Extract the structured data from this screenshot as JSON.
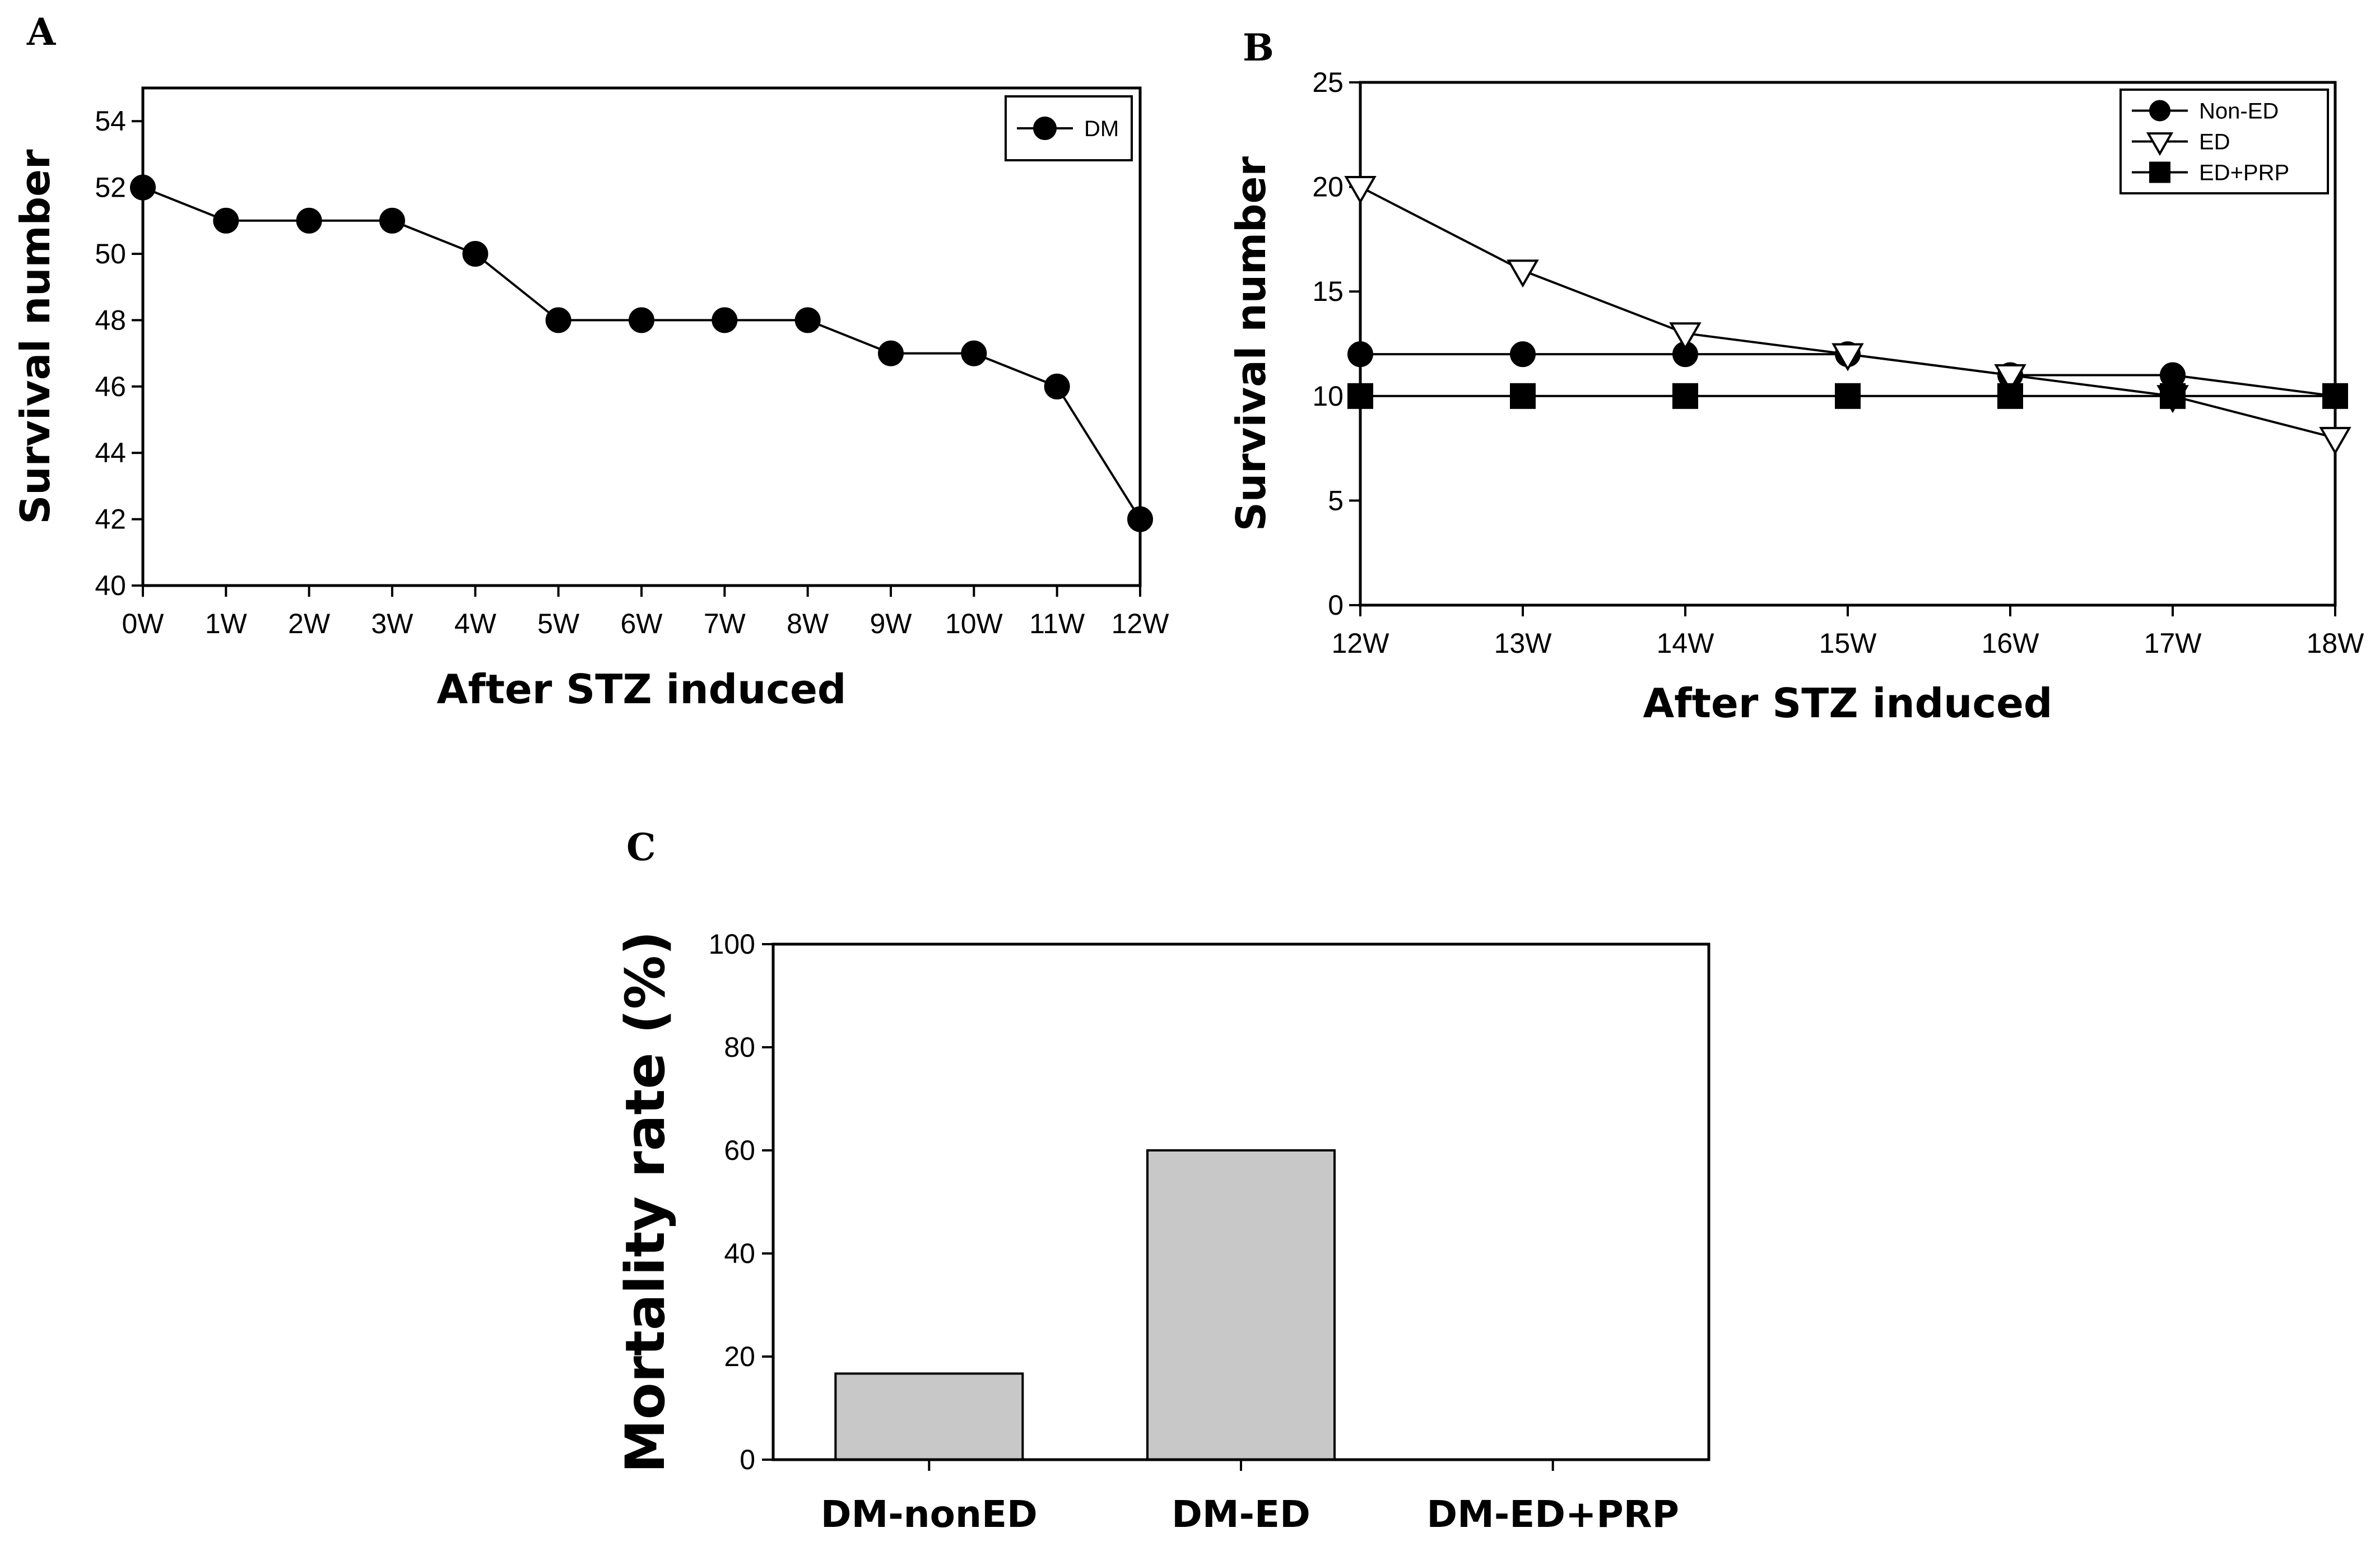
{
  "chart_data": [
    {
      "panel": "A",
      "type": "line",
      "x": [
        "0W",
        "1W",
        "2W",
        "3W",
        "4W",
        "5W",
        "6W",
        "7W",
        "8W",
        "9W",
        "10W",
        "11W",
        "12W"
      ],
      "series": [
        {
          "name": "DM",
          "marker": "circle",
          "values": [
            52,
            51,
            51,
            51,
            50,
            48,
            48,
            48,
            48,
            47,
            47,
            46,
            42
          ]
        }
      ],
      "xlabel": "After STZ induced",
      "ylabel": "Survival number",
      "ylim": [
        40,
        55
      ],
      "yticks": [
        40,
        42,
        44,
        46,
        48,
        50,
        52,
        54
      ],
      "legend": "top-right"
    },
    {
      "panel": "B",
      "type": "line",
      "x": [
        "12W",
        "13W",
        "14W",
        "15W",
        "16W",
        "17W",
        "18W"
      ],
      "series": [
        {
          "name": "Non-ED",
          "marker": "circle",
          "values": [
            12,
            12,
            12,
            12,
            11,
            11,
            10
          ]
        },
        {
          "name": "ED",
          "marker": "triangle-down-open",
          "values": [
            20,
            16,
            13,
            12,
            11,
            10,
            8
          ]
        },
        {
          "name": "ED+PRP",
          "marker": "square",
          "values": [
            10,
            10,
            10,
            10,
            10,
            10,
            10
          ]
        }
      ],
      "xlabel": "After STZ induced",
      "ylabel": "Survival number",
      "ylim": [
        0,
        25
      ],
      "yticks": [
        0,
        5,
        10,
        15,
        20,
        25
      ],
      "legend": "top-right"
    },
    {
      "panel": "C",
      "type": "bar",
      "categories": [
        "DM-nonED",
        "DM-ED",
        "DM-ED+PRP"
      ],
      "values": [
        16.7,
        60,
        0
      ],
      "xlabel": "",
      "ylabel": "Mortality rate (%)",
      "ylim": [
        0,
        100
      ],
      "yticks": [
        0,
        20,
        40,
        60,
        80,
        100
      ],
      "bar_color": "#c8c8c8"
    }
  ]
}
